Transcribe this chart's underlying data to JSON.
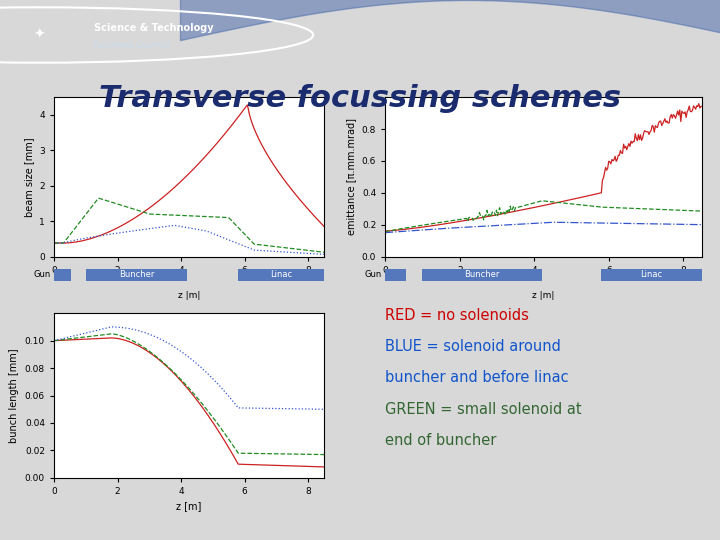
{
  "title": "Transverse focussing schemes",
  "title_color": "#1a2b6e",
  "title_fontsize": 22,
  "bg_color": "#d8d8d8",
  "header_color": "#1a3a6e",
  "header_curve_color": "#8899bb",
  "legend_lines": [
    {
      "text": "RED = no solenoids",
      "color": "#cc0000"
    },
    {
      "text": "BLUE = solenoid around",
      "color": "#1155cc"
    },
    {
      "text": "buncher and before linac",
      "color": "#1155cc"
    },
    {
      "text": "GREEN = small solenoid at",
      "color": "#336633"
    },
    {
      "text": "end of buncher",
      "color": "#336633"
    }
  ],
  "gun_label": "Gun",
  "buncher_label": "Buncher",
  "linac_label": "Linac",
  "z_label_pipes": "z |m|",
  "z_label_m": "z [m]",
  "beam_size_ylabel": "beam size [mm]",
  "emittance_ylabel": "emittance [π.mm.mrad]",
  "bunch_length_ylabel": "bunch length [mm]",
  "box_color": "#5577bb",
  "box_text_color": "white",
  "plot_bg": "white"
}
